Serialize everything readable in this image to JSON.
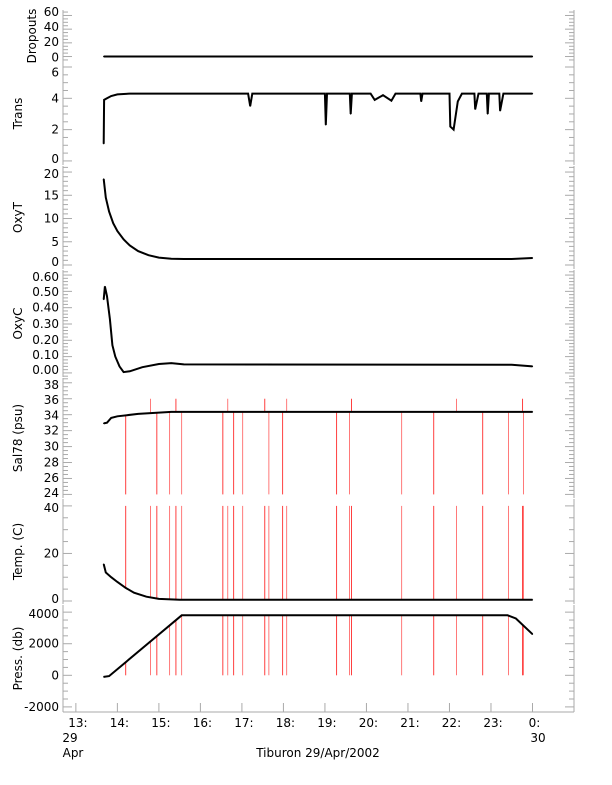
{
  "chart_data": {
    "type": "line",
    "title": "Tiburon 29/Apr/2002",
    "xlabel": "Tiburon 29/Apr/2002",
    "xlim": [
      12.69,
      25.0
    ],
    "x_ticks": [
      13,
      14,
      15,
      16,
      17,
      18,
      19,
      20,
      21,
      22,
      23,
      24
    ],
    "x_tick_labels": [
      "13:",
      "14:",
      "15:",
      "16:",
      "17:",
      "18:",
      "19:",
      "20:",
      "21:",
      "22:",
      "23:",
      "0:"
    ],
    "x_date_labels": {
      "start_day": "29",
      "start_month": "Apr",
      "end_day": "30"
    },
    "grid": false,
    "colors": {
      "series": "#000000",
      "spikes": "#ff4040",
      "axis": "#aaaaaa"
    },
    "spike_hours": [
      14.2,
      14.8,
      14.95,
      15.26,
      15.41,
      15.55,
      16.54,
      16.66,
      16.8,
      17.02,
      17.55,
      17.65,
      17.98,
      18.08,
      19.28,
      19.59,
      19.64,
      20.85,
      21.62,
      22.17,
      22.8,
      23.42,
      23.76,
      23.78
    ],
    "panels": [
      {
        "ylabel": "Dropouts",
        "ylim": [
          -8,
          68
        ],
        "ticks": [
          0,
          20,
          40,
          60
        ],
        "tick_labels": [
          "0",
          "20",
          "40",
          "60"
        ],
        "minor": 5,
        "series": [
          [
            13.67,
            0
          ],
          [
            24.0,
            0
          ]
        ],
        "spikes": []
      },
      {
        "ylabel": "Trans",
        "ylim": [
          -0.26,
          6.32
        ],
        "ticks": [
          0,
          2,
          4,
          6
        ],
        "tick_labels": [
          "0",
          "2",
          "4",
          "6"
        ],
        "minor": 0.5,
        "series": [
          [
            13.67,
            1.1
          ],
          [
            13.68,
            3.9
          ],
          [
            13.75,
            4.0
          ],
          [
            13.85,
            4.15
          ],
          [
            14.0,
            4.25
          ],
          [
            14.3,
            4.3
          ],
          [
            17.15,
            4.3
          ],
          [
            17.2,
            3.5
          ],
          [
            17.25,
            4.3
          ],
          [
            19.0,
            4.3
          ],
          [
            19.02,
            2.3
          ],
          [
            19.05,
            4.3
          ],
          [
            19.6,
            4.3
          ],
          [
            19.62,
            3.0
          ],
          [
            19.65,
            4.3
          ],
          [
            20.1,
            4.3
          ],
          [
            20.2,
            3.9
          ],
          [
            20.4,
            4.2
          ],
          [
            20.6,
            3.85
          ],
          [
            20.7,
            4.3
          ],
          [
            21.3,
            4.3
          ],
          [
            21.32,
            3.8
          ],
          [
            21.35,
            4.3
          ],
          [
            22.0,
            4.3
          ],
          [
            22.02,
            2.2
          ],
          [
            22.1,
            2.0
          ],
          [
            22.2,
            3.8
          ],
          [
            22.3,
            4.3
          ],
          [
            22.6,
            4.3
          ],
          [
            22.62,
            3.3
          ],
          [
            22.7,
            4.3
          ],
          [
            22.9,
            4.3
          ],
          [
            22.92,
            3.0
          ],
          [
            22.95,
            4.3
          ],
          [
            23.2,
            4.3
          ],
          [
            23.22,
            3.2
          ],
          [
            23.3,
            4.3
          ],
          [
            24.0,
            4.3
          ]
        ],
        "spikes": []
      },
      {
        "ylabel": "OxyT",
        "ylim": [
          -0.86,
          21.3
        ],
        "ticks": [
          0,
          5,
          10,
          15,
          20
        ],
        "tick_labels": [
          "0",
          "5",
          "10",
          "15",
          "20"
        ],
        "minor": 1,
        "series": [
          [
            13.67,
            18.5
          ],
          [
            13.72,
            14.5
          ],
          [
            13.8,
            11.5
          ],
          [
            13.9,
            9.0
          ],
          [
            14.0,
            7.3
          ],
          [
            14.15,
            5.5
          ],
          [
            14.3,
            4.2
          ],
          [
            14.5,
            3.0
          ],
          [
            14.75,
            2.1
          ],
          [
            15.0,
            1.6
          ],
          [
            15.3,
            1.35
          ],
          [
            15.6,
            1.3
          ],
          [
            23.5,
            1.3
          ],
          [
            24.0,
            1.5
          ]
        ],
        "spikes": []
      },
      {
        "ylabel": "OxyC",
        "ylim": [
          -0.025,
          0.631
        ],
        "ticks": [
          0,
          0.1,
          0.2,
          0.3,
          0.4,
          0.5,
          0.6
        ],
        "tick_labels": [
          "0.00",
          "0.10",
          "0.20",
          "0.30",
          "0.40",
          "0.50",
          "0.60"
        ],
        "minor": 0.02,
        "series": [
          [
            13.67,
            0.45
          ],
          [
            13.7,
            0.53
          ],
          [
            13.75,
            0.47
          ],
          [
            13.82,
            0.33
          ],
          [
            13.88,
            0.17
          ],
          [
            13.95,
            0.1
          ],
          [
            14.05,
            0.04
          ],
          [
            14.15,
            0.005
          ],
          [
            14.3,
            0.01
          ],
          [
            14.6,
            0.035
          ],
          [
            15.0,
            0.055
          ],
          [
            15.3,
            0.06
          ],
          [
            15.6,
            0.052
          ],
          [
            23.5,
            0.05
          ],
          [
            24.0,
            0.04
          ]
        ],
        "spikes": []
      },
      {
        "ylabel": "Sal78 (psu)",
        "ylim": [
          23.55,
          38.6
        ],
        "ticks": [
          24,
          26,
          28,
          30,
          32,
          34,
          36,
          38
        ],
        "tick_labels": [
          "24",
          "26",
          "28",
          "30",
          "32",
          "34",
          "36",
          "38"
        ],
        "minor": 0.5,
        "series": [
          [
            13.67,
            32.9
          ],
          [
            13.75,
            33.0
          ],
          [
            13.85,
            33.6
          ],
          [
            14.0,
            33.8
          ],
          [
            14.5,
            34.1
          ],
          [
            15.3,
            34.35
          ],
          [
            24.0,
            34.35
          ]
        ],
        "spikes_to": 24.0,
        "spikes_up_to": 36.0
      },
      {
        "ylabel": "Temp. (C)",
        "ylim": [
          -1.26,
          42.9
        ],
        "ticks": [
          0,
          20,
          40
        ],
        "tick_labels": [
          "0",
          "20",
          "40"
        ],
        "minor": 5,
        "series": [
          [
            13.67,
            15.5
          ],
          [
            13.72,
            12
          ],
          [
            13.85,
            10
          ],
          [
            14.0,
            8
          ],
          [
            14.2,
            5.5
          ],
          [
            14.4,
            3.5
          ],
          [
            14.7,
            1.8
          ],
          [
            15.0,
            0.9
          ],
          [
            15.5,
            0.5
          ],
          [
            24.0,
            0.5
          ]
        ],
        "spikes_to": 40.0
      },
      {
        "ylabel": "Press. (db)",
        "ylim": [
          -2323,
          4452
        ],
        "ticks": [
          -2000,
          0,
          2000,
          4000
        ],
        "tick_labels": [
          "-2000",
          "0",
          "2000",
          "4000"
        ],
        "minor": 500,
        "series": [
          [
            13.67,
            -100
          ],
          [
            13.8,
            -50
          ],
          [
            15.55,
            3800
          ],
          [
            23.4,
            3800
          ],
          [
            23.6,
            3600
          ],
          [
            24.0,
            2600
          ]
        ],
        "spikes_to": 0
      }
    ]
  }
}
